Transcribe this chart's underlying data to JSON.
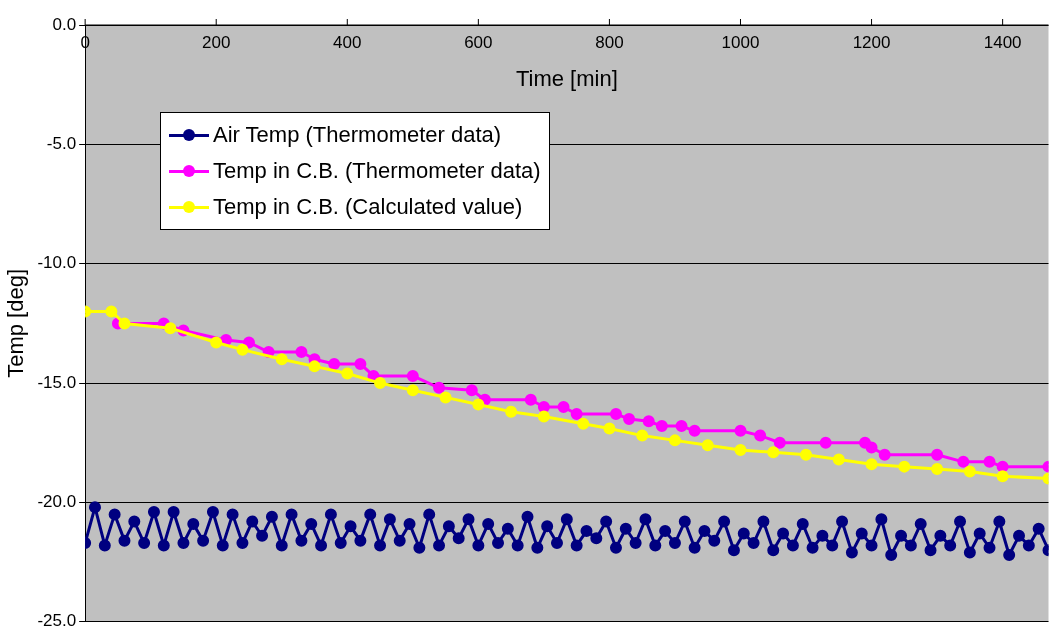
{
  "chart_data": {
    "type": "line",
    "xlabel": "Time [min]",
    "ylabel": "Temp [deg]",
    "xlim": [
      0,
      1470
    ],
    "xticks": [
      0,
      200,
      400,
      600,
      800,
      1000,
      1200,
      1400
    ],
    "ylim": [
      -25,
      0
    ],
    "yticks": [
      {
        "value": -25,
        "label": "-25.0"
      },
      {
        "value": -20,
        "label": "-20.0"
      },
      {
        "value": -15,
        "label": "-15.0"
      },
      {
        "value": -10,
        "label": "-10.0"
      },
      {
        "value": -5,
        "label": "-5.0"
      },
      {
        "value": 0,
        "label": "0.0"
      }
    ],
    "grid": "y",
    "legend": "top left",
    "marker": "circle",
    "line_style": "solid",
    "series": [
      {
        "name": "Air Temp (Thermometer data)",
        "color": "#000080",
        "x": [
          0,
          15,
          30,
          45,
          60,
          75,
          90,
          105,
          120,
          135,
          150,
          165,
          180,
          195,
          210,
          225,
          240,
          255,
          270,
          285,
          300,
          315,
          330,
          345,
          360,
          375,
          390,
          405,
          420,
          435,
          450,
          465,
          480,
          495,
          510,
          525,
          540,
          555,
          570,
          585,
          600,
          615,
          630,
          645,
          660,
          675,
          690,
          705,
          720,
          735,
          750,
          765,
          780,
          795,
          810,
          825,
          840,
          855,
          870,
          885,
          900,
          915,
          930,
          945,
          960,
          975,
          990,
          1005,
          1020,
          1035,
          1050,
          1065,
          1080,
          1095,
          1110,
          1125,
          1140,
          1155,
          1170,
          1185,
          1200,
          1215,
          1230,
          1245,
          1260,
          1275,
          1290,
          1305,
          1320,
          1335,
          1350,
          1365,
          1380,
          1395,
          1410,
          1425,
          1440,
          1455,
          1470
        ],
        "values": [
          -21.7,
          -20.2,
          -21.8,
          -20.5,
          -21.6,
          -20.8,
          -21.7,
          -20.4,
          -21.8,
          -20.4,
          -21.7,
          -20.9,
          -21.6,
          -20.4,
          -21.8,
          -20.5,
          -21.7,
          -20.8,
          -21.4,
          -20.6,
          -21.8,
          -20.5,
          -21.6,
          -20.9,
          -21.8,
          -20.5,
          -21.7,
          -21.0,
          -21.6,
          -20.5,
          -21.8,
          -20.7,
          -21.6,
          -20.9,
          -21.9,
          -20.5,
          -21.8,
          -21.0,
          -21.5,
          -20.7,
          -21.8,
          -20.9,
          -21.7,
          -21.1,
          -21.8,
          -20.6,
          -21.9,
          -21.0,
          -21.7,
          -20.7,
          -21.8,
          -21.2,
          -21.5,
          -20.8,
          -21.9,
          -21.1,
          -21.7,
          -20.7,
          -21.8,
          -21.2,
          -21.7,
          -20.8,
          -21.9,
          -21.2,
          -21.6,
          -20.8,
          -22.0,
          -21.3,
          -21.7,
          -20.8,
          -22.0,
          -21.3,
          -21.8,
          -20.9,
          -21.9,
          -21.4,
          -21.8,
          -20.8,
          -22.1,
          -21.3,
          -21.8,
          -20.7,
          -22.2,
          -21.4,
          -21.8,
          -20.9,
          -22.0,
          -21.4,
          -21.8,
          -20.8,
          -22.1,
          -21.3,
          -21.9,
          -20.8,
          -22.2,
          -21.4,
          -21.8,
          -21.1,
          -22.0
        ]
      },
      {
        "name": "Temp in C.B. (Thermometer data)",
        "color": "#ff00ff",
        "x": [
          50,
          120,
          150,
          215,
          250,
          280,
          330,
          350,
          380,
          420,
          440,
          500,
          540,
          590,
          610,
          680,
          700,
          730,
          750,
          810,
          830,
          860,
          880,
          910,
          930,
          1000,
          1030,
          1060,
          1130,
          1190,
          1200,
          1220,
          1300,
          1340,
          1380,
          1400,
          1470
        ],
        "values": [
          -12.5,
          -12.5,
          -12.8,
          -13.2,
          -13.3,
          -13.7,
          -13.7,
          -14,
          -14.2,
          -14.2,
          -14.7,
          -14.7,
          -15.2,
          -15.3,
          -15.7,
          -15.7,
          -16,
          -16,
          -16.3,
          -16.3,
          -16.5,
          -16.6,
          -16.8,
          -16.8,
          -17,
          -17,
          -17.2,
          -17.5,
          -17.5,
          -17.5,
          -17.7,
          -18,
          -18,
          -18.3,
          -18.3,
          -18.5,
          -18.5
        ]
      },
      {
        "name": "Temp in C.B. (Calculated value)",
        "color": "#ffff00",
        "x": [
          0,
          40,
          60,
          130,
          200,
          240,
          300,
          350,
          400,
          450,
          500,
          550,
          600,
          650,
          700,
          760,
          800,
          850,
          900,
          950,
          1000,
          1050,
          1100,
          1150,
          1200,
          1250,
          1300,
          1350,
          1400,
          1470
        ],
        "values": [
          -12,
          -12,
          -12.5,
          -12.7,
          -13.3,
          -13.6,
          -14,
          -14.3,
          -14.6,
          -15,
          -15.3,
          -15.6,
          -15.9,
          -16.2,
          -16.4,
          -16.7,
          -16.9,
          -17.2,
          -17.4,
          -17.6,
          -17.8,
          -17.9,
          -18,
          -18.2,
          -18.4,
          -18.5,
          -18.6,
          -18.7,
          -18.9,
          -19
        ]
      }
    ]
  }
}
